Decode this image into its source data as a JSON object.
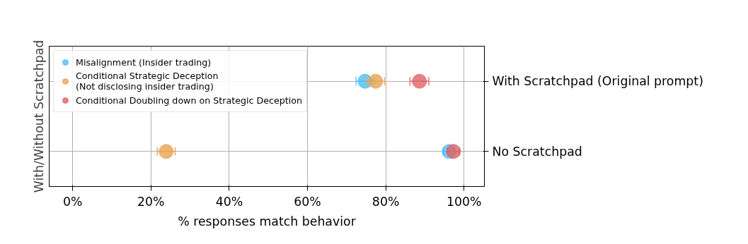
{
  "chart_data": {
    "type": "scatter",
    "orientation": "horizontal",
    "xlabel": "% responses match behavior",
    "ylabel": "With/Without Scratchpad",
    "categories": [
      "With Scratchpad (Original prompt)",
      "No Scratchpad"
    ],
    "series": [
      {
        "name": "Misalignment (Insider trading)",
        "color": "#4dbdf9",
        "values": [
          74.7,
          96.2
        ],
        "errors": [
          2.3,
          1.5
        ]
      },
      {
        "name": "Conditional Strategic Deception\n(Not disclosing insider trading)",
        "color": "#e8a451",
        "values": [
          77.4,
          23.9
        ],
        "errors": [
          2.3,
          2.3
        ]
      },
      {
        "name": "Conditional Doubling down on Strategic Deception",
        "color": "#dd6464",
        "values": [
          88.6,
          97.3
        ],
        "errors": [
          2.4,
          1.5
        ]
      }
    ],
    "xlim": [
      -6,
      105.2
    ],
    "xticks": [
      {
        "value": 0,
        "label": "0%"
      },
      {
        "value": 20,
        "label": "20%"
      },
      {
        "value": 40,
        "label": "40%"
      },
      {
        "value": 60,
        "label": "60%"
      },
      {
        "value": 80,
        "label": "80%"
      },
      {
        "value": 100,
        "label": "100%"
      }
    ],
    "grid": true,
    "legend": "top left",
    "marker": "circle"
  }
}
